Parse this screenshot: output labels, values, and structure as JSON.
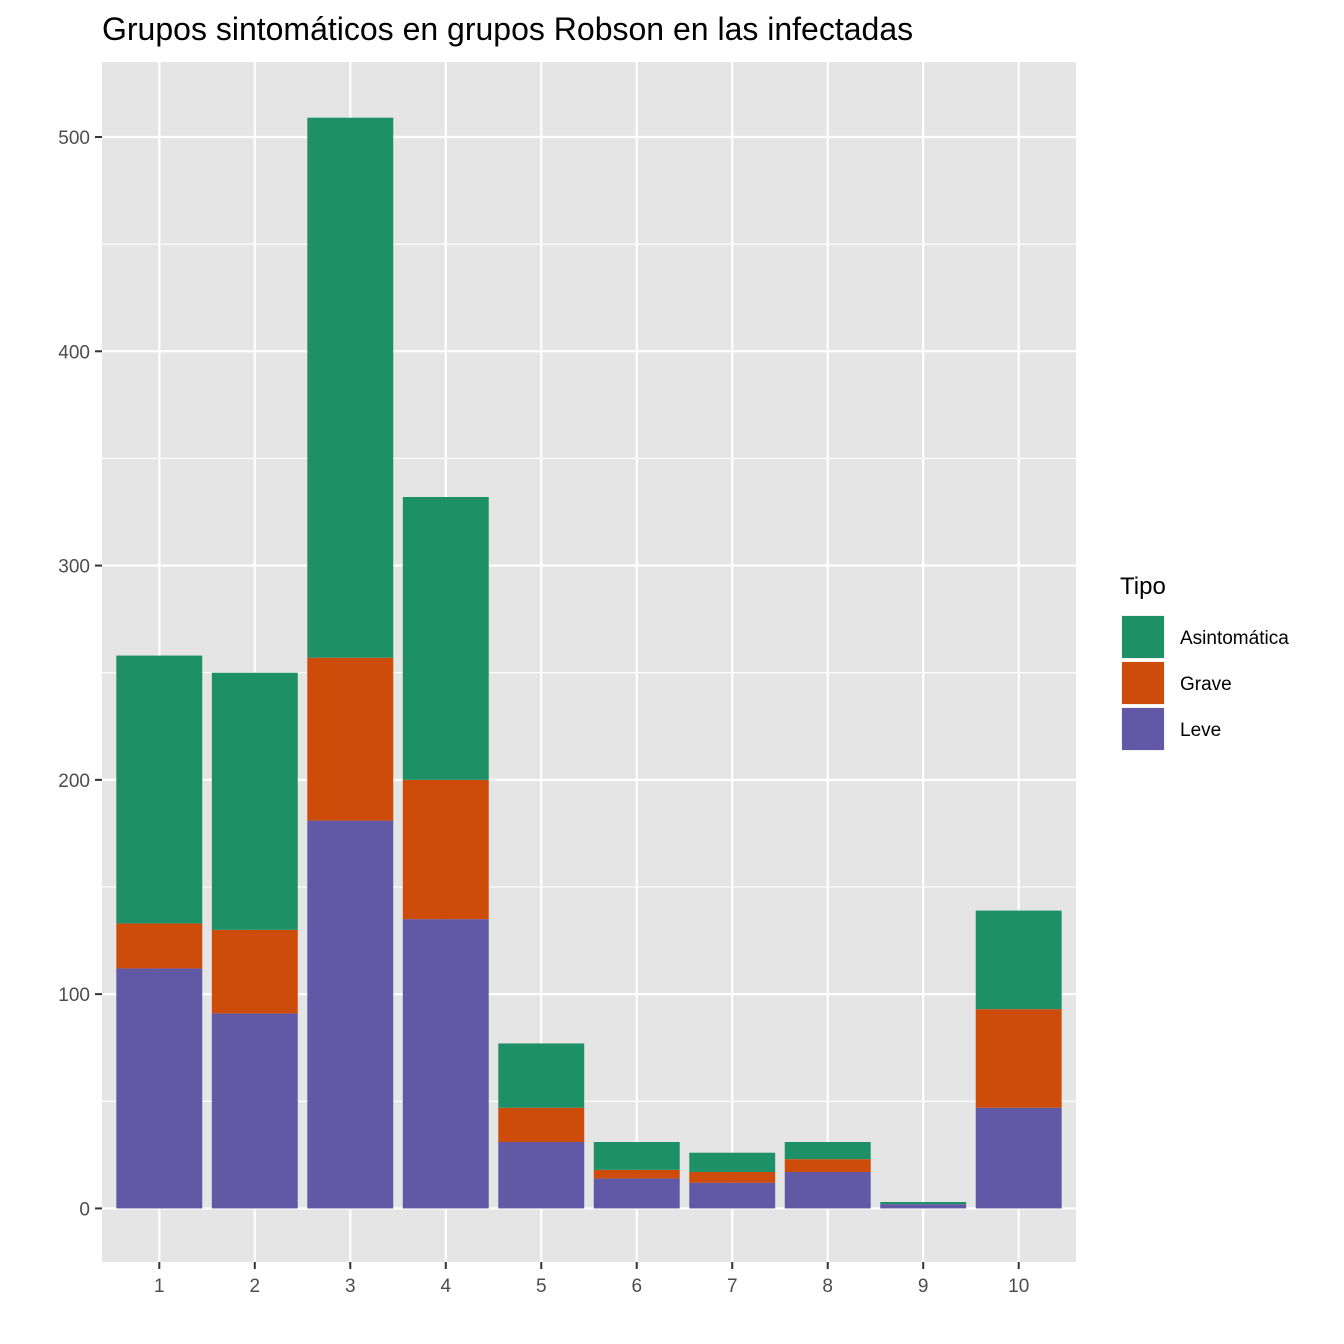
{
  "chart_data": {
    "type": "bar",
    "stacked": true,
    "title": "Grupos sintomáticos en grupos Robson en las infectadas",
    "xlabel": "",
    "ylabel": "",
    "categories": [
      "1",
      "2",
      "3",
      "4",
      "5",
      "6",
      "7",
      "8",
      "9",
      "10"
    ],
    "series": [
      {
        "name": "Leve",
        "color": "#6159A5",
        "values": [
          112,
          91,
          181,
          135,
          31,
          14,
          12,
          17,
          2,
          47
        ]
      },
      {
        "name": "Grave",
        "color": "#CE4C0A",
        "values": [
          21,
          39,
          76,
          65,
          16,
          4,
          5,
          6,
          0,
          46
        ]
      },
      {
        "name": "Asintomática",
        "color": "#1E9068",
        "values": [
          125,
          120,
          252,
          132,
          30,
          13,
          9,
          8,
          1,
          46
        ]
      }
    ],
    "ylim": [
      -25,
      535
    ],
    "yticks": [
      "0",
      "100",
      "200",
      "300",
      "400",
      "500"
    ],
    "ytick_values": [
      0,
      100,
      200,
      300,
      400,
      500
    ],
    "grid": true,
    "legend": {
      "title": "Tipo",
      "placement": "right",
      "entries": [
        "Asintomática",
        "Grave",
        "Leve"
      ]
    },
    "panel_color": "#E5E5E5",
    "grid_color": "#FFFFFF"
  }
}
